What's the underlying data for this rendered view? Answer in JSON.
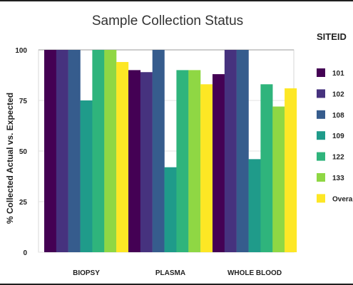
{
  "chart_data": {
    "type": "bar",
    "title": "Sample Collection Status",
    "xlabel": "",
    "ylabel": "% Collected Actual vs. Expected",
    "ylim": [
      0,
      100
    ],
    "yticks": [
      "0",
      "25",
      "50",
      "75",
      "100"
    ],
    "grid": true,
    "legend": {
      "title": "SITEID",
      "placement": "right"
    },
    "categories": [
      "BIOPSY",
      "PLASMA",
      "WHOLE BLOOD"
    ],
    "series": [
      {
        "name": "101",
        "color": "#440154",
        "values": [
          100,
          90,
          88
        ]
      },
      {
        "name": "102",
        "color": "#46327e",
        "values": [
          100,
          89,
          100
        ]
      },
      {
        "name": "108",
        "color": "#365c8d",
        "values": [
          100,
          100,
          100
        ]
      },
      {
        "name": "109",
        "color": "#1f9b8a",
        "values": [
          75,
          42,
          46
        ]
      },
      {
        "name": "122",
        "color": "#2fb47c",
        "values": [
          100,
          90,
          83
        ]
      },
      {
        "name": "133",
        "color": "#8fd744",
        "values": [
          100,
          90,
          72
        ]
      },
      {
        "name": "Overall",
        "color": "#fde725",
        "values": [
          94,
          83,
          81
        ]
      }
    ]
  }
}
